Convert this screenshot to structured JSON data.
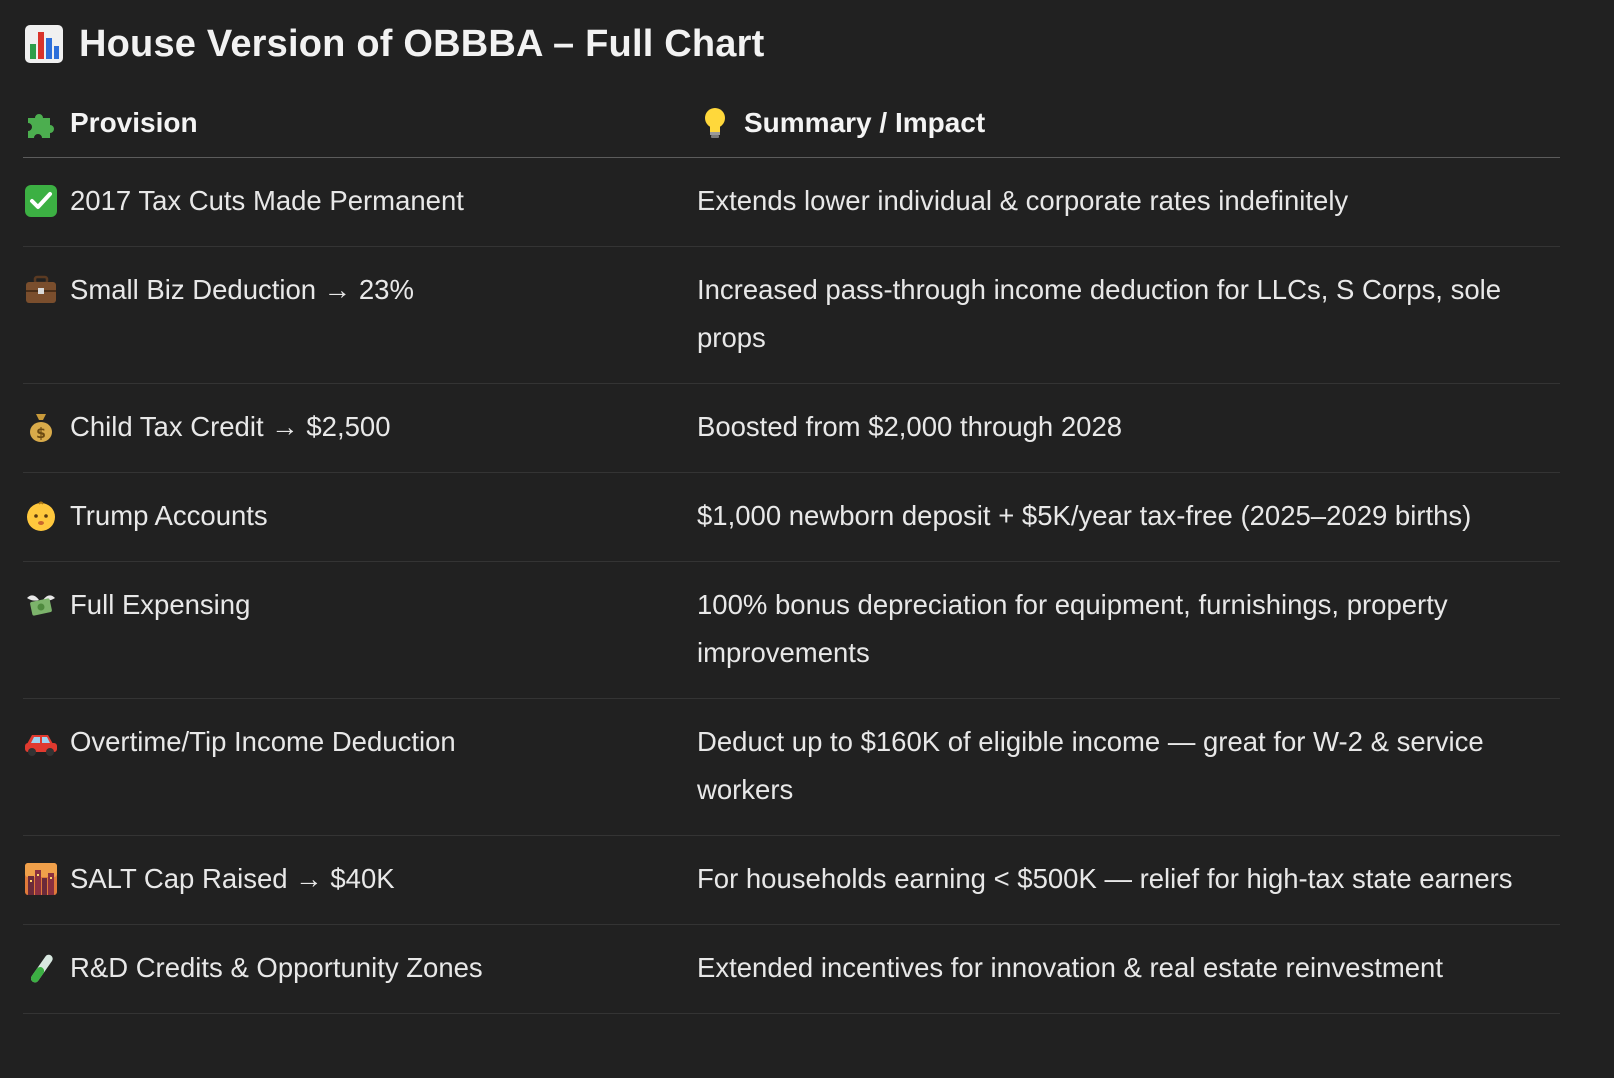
{
  "title": {
    "emoji_name": "bar-chart-icon",
    "text": "House Version of OBBBA – Full Chart"
  },
  "table": {
    "headers": {
      "provision_icon": "puzzle-piece-icon",
      "provision": "Provision",
      "summary_icon": "light-bulb-icon",
      "summary": "Summary / Impact"
    },
    "rows": [
      {
        "icon": "check-mark-icon",
        "provision": "2017 Tax Cuts Made Permanent",
        "summary": "Extends lower individual & corporate rates indefinitely"
      },
      {
        "icon": "briefcase-icon",
        "provision": "Small Biz Deduction → 23%",
        "summary": "Increased pass-through income deduction for LLCs, S Corps, sole props"
      },
      {
        "icon": "money-bag-icon",
        "provision": "Child Tax Credit → $2,500",
        "summary": "Boosted from $2,000 through 2028"
      },
      {
        "icon": "baby-face-icon",
        "provision": "Trump Accounts",
        "summary": "$1,000 newborn deposit + $5K/year tax-free (2025–2029 births)"
      },
      {
        "icon": "money-with-wings-icon",
        "provision": "Full Expensing",
        "summary": "100% bonus depreciation for equipment, furnishings, property improvements"
      },
      {
        "icon": "car-icon",
        "provision": "Overtime/Tip Income Deduction",
        "summary": "Deduct up to $160K of eligible income — great for W-2 & service workers"
      },
      {
        "icon": "city-sunset-icon",
        "provision": "SALT Cap Raised → $40K",
        "summary": "For households earning < $500K — relief for high-tax state earners"
      },
      {
        "icon": "test-tube-icon",
        "provision": "R&D Credits & Opportunity Zones",
        "summary": "Extended incentives for innovation & real estate reinvestment"
      }
    ]
  },
  "colors": {
    "background": "#212121",
    "text": "#ececec",
    "divider": "#343434",
    "header_divider": "#5c5c5c",
    "check_green": "#3cb043"
  }
}
